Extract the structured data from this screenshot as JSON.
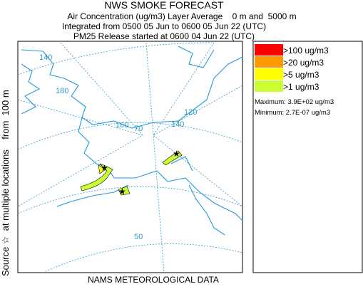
{
  "header": {
    "title": "NWS SMOKE FORECAST",
    "lines": [
      "Air Concentration (ug/m3) Layer Average    0 m and  5000 m",
      "Integrated from 0500 05 Jun to 0600 05 Jun 22 (UTC)",
      "PM25 Release started at 0600 04 Jun 22 (UTC)"
    ]
  },
  "legend": {
    "entries": [
      {
        "label": ">100 ug/m3",
        "color": "#ff0000"
      },
      {
        "label": ">20 ug/m3",
        "color": "#ff9900"
      },
      {
        "label": ">5 ug/m3",
        "color": "#ffff00"
      },
      {
        "label": ">1 ug/m3",
        "color": "#ccff33"
      }
    ],
    "maximum": "Maximum: 3.9E+02 ug/m3",
    "minimum": "Minimum: 2.7E-07 ug/m3"
  },
  "map": {
    "labels": [
      "140",
      "180",
      "160",
      "70",
      "140",
      "120",
      "50"
    ]
  },
  "side_label": "Source ☆  at multiple locations    from  100 m",
  "footer": "NAMS METEOROLOGICAL DATA"
}
